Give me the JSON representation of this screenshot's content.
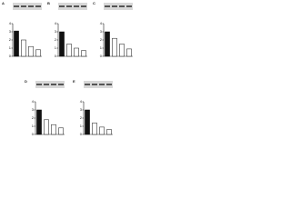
{
  "chart_data": [
    {
      "type": "bar",
      "title": "A",
      "categories": [
        null,
        null,
        null,
        null
      ],
      "values": [
        3.1,
        2.0,
        1.2,
        0.8
      ],
      "colors": [
        "#111111",
        "#ffffff",
        "#ffffff",
        "#ffffff"
      ],
      "ylim": [
        0,
        4
      ],
      "yticks": [
        0,
        1,
        2,
        3,
        4
      ]
    },
    {
      "type": "bar",
      "title": "B",
      "categories": [
        null,
        null,
        null,
        null
      ],
      "values": [
        3.0,
        1.5,
        1.0,
        0.7
      ],
      "colors": [
        "#111111",
        "#ffffff",
        "#ffffff",
        "#ffffff"
      ],
      "ylim": [
        0,
        4
      ],
      "yticks": [
        0,
        1,
        2,
        3,
        4
      ]
    },
    {
      "type": "bar",
      "title": "C",
      "categories": [
        null,
        null,
        null,
        null
      ],
      "values": [
        3.0,
        2.2,
        1.5,
        0.9
      ],
      "colors": [
        "#111111",
        "#ffffff",
        "#ffffff",
        "#ffffff"
      ],
      "ylim": [
        0,
        4
      ],
      "yticks": [
        0,
        1,
        2,
        3,
        4
      ]
    },
    {
      "type": "bar",
      "title": "D",
      "categories": [
        null,
        null,
        null,
        null
      ],
      "values": [
        3.0,
        1.8,
        1.2,
        0.8
      ],
      "colors": [
        "#111111",
        "#ffffff",
        "#ffffff",
        "#ffffff"
      ],
      "ylim": [
        0,
        4
      ],
      "yticks": [
        0,
        1,
        2,
        3,
        4
      ]
    },
    {
      "type": "bar",
      "title": "E",
      "categories": [
        null,
        null,
        null,
        null
      ],
      "values": [
        3.0,
        1.4,
        0.9,
        0.6
      ],
      "colors": [
        "#111111",
        "#ffffff",
        "#ffffff",
        "#ffffff"
      ],
      "ylim": [
        0,
        4
      ],
      "yticks": [
        0,
        1,
        2,
        3,
        4
      ]
    }
  ]
}
